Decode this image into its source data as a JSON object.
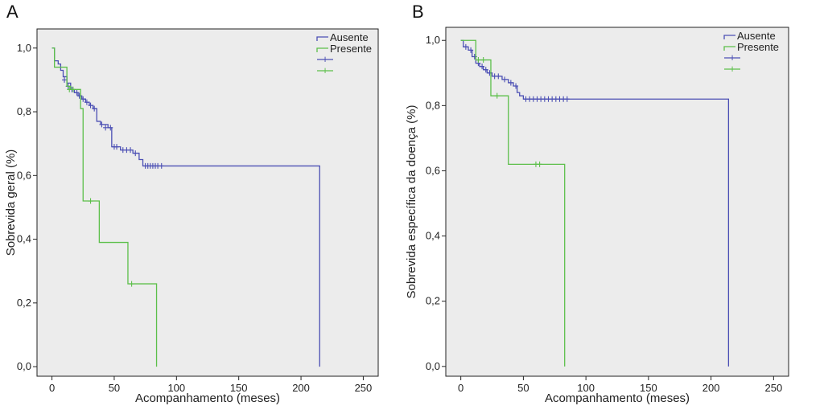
{
  "chart_data": [
    {
      "type": "line",
      "panel_label": "A",
      "title": "",
      "xlabel": "Acompanhamento (meses)",
      "ylabel": "Sobrevida geral (%)",
      "xlim": [
        -12,
        262
      ],
      "ylim": [
        -0.03,
        1.06
      ],
      "x_ticks": [
        0,
        50,
        100,
        150,
        200,
        250
      ],
      "y_ticks": [
        0.0,
        0.2,
        0.4,
        0.6,
        0.8,
        1.0
      ],
      "y_tick_labels": [
        "0,0",
        "0,2",
        "0,4",
        "0,6",
        "0,8",
        "1,0"
      ],
      "legend_position": "top-right",
      "legend": [
        "Ausente",
        "Presente",
        "+",
        "+"
      ],
      "grid": false,
      "series": [
        {
          "name": "Ausente",
          "color": "#4b4fb4",
          "step": true,
          "points": [
            [
              0,
              1.0
            ],
            [
              2,
              0.96
            ],
            [
              5,
              0.95
            ],
            [
              7,
              0.93
            ],
            [
              9,
              0.91
            ],
            [
              12,
              0.89
            ],
            [
              15,
              0.87
            ],
            [
              18,
              0.86
            ],
            [
              21,
              0.85
            ],
            [
              24,
              0.84
            ],
            [
              27,
              0.83
            ],
            [
              30,
              0.82
            ],
            [
              33,
              0.81
            ],
            [
              36,
              0.77
            ],
            [
              39,
              0.76
            ],
            [
              45,
              0.75
            ],
            [
              48,
              0.69
            ],
            [
              55,
              0.68
            ],
            [
              65,
              0.67
            ],
            [
              70,
              0.65
            ],
            [
              73,
              0.63
            ],
            [
              215,
              0.63
            ],
            [
              215,
              0.0
            ]
          ],
          "censored": [
            [
              10,
              0.9
            ],
            [
              13,
              0.88
            ],
            [
              16,
              0.87
            ],
            [
              20,
              0.86
            ],
            [
              22,
              0.85
            ],
            [
              25,
              0.84
            ],
            [
              28,
              0.83
            ],
            [
              31,
              0.82
            ],
            [
              34,
              0.81
            ],
            [
              40,
              0.76
            ],
            [
              43,
              0.75
            ],
            [
              47,
              0.75
            ],
            [
              50,
              0.69
            ],
            [
              52,
              0.69
            ],
            [
              57,
              0.68
            ],
            [
              60,
              0.68
            ],
            [
              63,
              0.68
            ],
            [
              67,
              0.67
            ],
            [
              75,
              0.63
            ],
            [
              77,
              0.63
            ],
            [
              79,
              0.63
            ],
            [
              81,
              0.63
            ],
            [
              83,
              0.63
            ],
            [
              85,
              0.63
            ],
            [
              88,
              0.63
            ]
          ]
        },
        {
          "name": "Presente",
          "color": "#5cbf4a",
          "step": true,
          "points": [
            [
              0,
              1.0
            ],
            [
              2,
              0.94
            ],
            [
              12,
              0.88
            ],
            [
              15,
              0.87
            ],
            [
              20,
              0.87
            ],
            [
              23,
              0.81
            ],
            [
              25,
              0.52
            ],
            [
              37,
              0.52
            ],
            [
              38,
              0.39
            ],
            [
              60,
              0.39
            ],
            [
              61,
              0.26
            ],
            [
              84,
              0.26
            ],
            [
              84,
              0.0
            ]
          ],
          "censored": [
            [
              14,
              0.87
            ],
            [
              17,
              0.87
            ],
            [
              31,
              0.52
            ],
            [
              64,
              0.26
            ]
          ]
        }
      ]
    },
    {
      "type": "line",
      "panel_label": "B",
      "title": "",
      "xlabel": "Acompanhamento (meses)",
      "ylabel": "Sobrevida específica da doença (%)",
      "xlim": [
        -12,
        262
      ],
      "ylim": [
        -0.03,
        1.04
      ],
      "x_ticks": [
        0,
        50,
        100,
        150,
        200,
        250
      ],
      "y_ticks": [
        0.0,
        0.2,
        0.4,
        0.6,
        0.8,
        1.0
      ],
      "y_tick_labels": [
        "0,0",
        "0,2",
        "0,4",
        "0,6",
        "0,8",
        "1,0"
      ],
      "legend_position": "top-right",
      "legend": [
        "Ausente",
        "Presente",
        "+",
        "+"
      ],
      "grid": false,
      "series": [
        {
          "name": "Ausente",
          "color": "#4b4fb4",
          "step": true,
          "points": [
            [
              0,
              1.0
            ],
            [
              2,
              0.98
            ],
            [
              6,
              0.97
            ],
            [
              9,
              0.95
            ],
            [
              12,
              0.93
            ],
            [
              15,
              0.92
            ],
            [
              18,
              0.91
            ],
            [
              21,
              0.9
            ],
            [
              25,
              0.89
            ],
            [
              33,
              0.88
            ],
            [
              38,
              0.87
            ],
            [
              42,
              0.86
            ],
            [
              45,
              0.84
            ],
            [
              47,
              0.83
            ],
            [
              50,
              0.82
            ],
            [
              214,
              0.82
            ],
            [
              214,
              0.0
            ]
          ],
          "censored": [
            [
              4,
              0.98
            ],
            [
              8,
              0.97
            ],
            [
              11,
              0.95
            ],
            [
              14,
              0.93
            ],
            [
              17,
              0.92
            ],
            [
              20,
              0.91
            ],
            [
              23,
              0.9
            ],
            [
              27,
              0.89
            ],
            [
              30,
              0.89
            ],
            [
              35,
              0.88
            ],
            [
              40,
              0.87
            ],
            [
              44,
              0.86
            ],
            [
              52,
              0.82
            ],
            [
              55,
              0.82
            ],
            [
              58,
              0.82
            ],
            [
              61,
              0.82
            ],
            [
              64,
              0.82
            ],
            [
              67,
              0.82
            ],
            [
              70,
              0.82
            ],
            [
              73,
              0.82
            ],
            [
              76,
              0.82
            ],
            [
              79,
              0.82
            ],
            [
              82,
              0.82
            ],
            [
              85,
              0.82
            ]
          ]
        },
        {
          "name": "Presente",
          "color": "#5cbf4a",
          "step": true,
          "points": [
            [
              0,
              1.0
            ],
            [
              10,
              1.0
            ],
            [
              12,
              0.94
            ],
            [
              22,
              0.94
            ],
            [
              24,
              0.83
            ],
            [
              37,
              0.83
            ],
            [
              38,
              0.62
            ],
            [
              83,
              0.62
            ],
            [
              83,
              0.0
            ]
          ],
          "censored": [
            [
              14,
              0.94
            ],
            [
              18,
              0.94
            ],
            [
              29,
              0.83
            ],
            [
              60,
              0.62
            ],
            [
              63,
              0.62
            ]
          ]
        }
      ]
    }
  ]
}
